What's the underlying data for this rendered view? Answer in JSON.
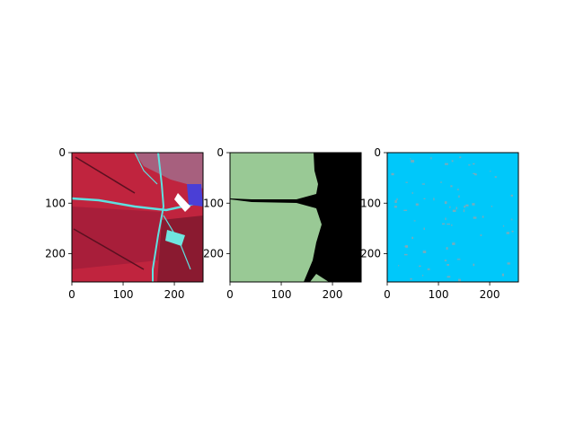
{
  "chart_data": [
    {
      "type": "image",
      "panel": "false-color satellite image",
      "xlim": [
        0,
        256
      ],
      "ylim": [
        256,
        0
      ],
      "xticks": [
        0,
        100,
        200
      ],
      "yticks": [
        0,
        100,
        200
      ],
      "colors": {
        "field": "#c0243e",
        "field_dark": "#8a1a30",
        "road": "#5fe0e0",
        "building": "#4a3fd6"
      }
    },
    {
      "type": "image",
      "panel": "segmentation mask",
      "xlim": [
        0,
        256
      ],
      "ylim": [
        256,
        0
      ],
      "xticks": [
        0,
        100,
        200
      ],
      "yticks": [
        0,
        100,
        200
      ],
      "colors": {
        "foreground": "#99c995",
        "background": "#000000"
      }
    },
    {
      "type": "image",
      "panel": "prediction map",
      "xlim": [
        0,
        256
      ],
      "ylim": [
        256,
        0
      ],
      "xticks": [
        0,
        100,
        200
      ],
      "yticks": [
        0,
        100,
        200
      ],
      "colors": {
        "fill": "#00c8fa",
        "speckle": "#8fa6b0"
      }
    }
  ]
}
